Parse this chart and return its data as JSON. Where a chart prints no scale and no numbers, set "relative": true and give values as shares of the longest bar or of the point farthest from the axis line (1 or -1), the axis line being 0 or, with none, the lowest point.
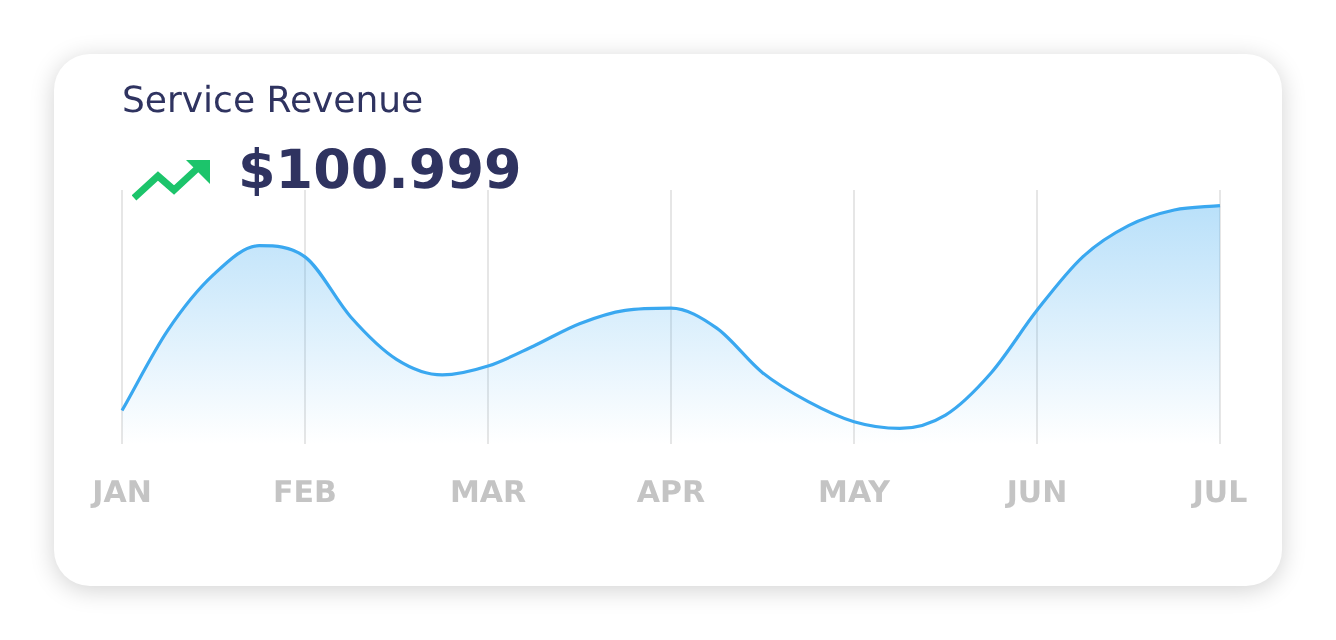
{
  "chart_data": {
    "type": "area",
    "title": "Service Revenue",
    "subtitle": "$100.999",
    "categories": [
      "JAN",
      null,
      null,
      null,
      "FEB",
      null,
      null,
      null,
      "MAR",
      null,
      null,
      null,
      "APR",
      null,
      null,
      null,
      "MAY",
      null,
      null,
      null,
      "JUN",
      null,
      null,
      null,
      "JUL"
    ],
    "values": [
      0.08,
      0.44,
      0.69,
      0.82,
      0.77,
      0.5,
      0.31,
      0.24,
      0.28,
      0.37,
      0.47,
      0.53,
      0.54,
      0.45,
      0.25,
      0.12,
      0.03,
      0,
      0.06,
      0.25,
      0.53,
      0.77,
      0.91,
      0.98,
      1
    ],
    "color": "#3aa8f0",
    "relative": true,
    "grid": "x",
    "legend": false
  }
}
